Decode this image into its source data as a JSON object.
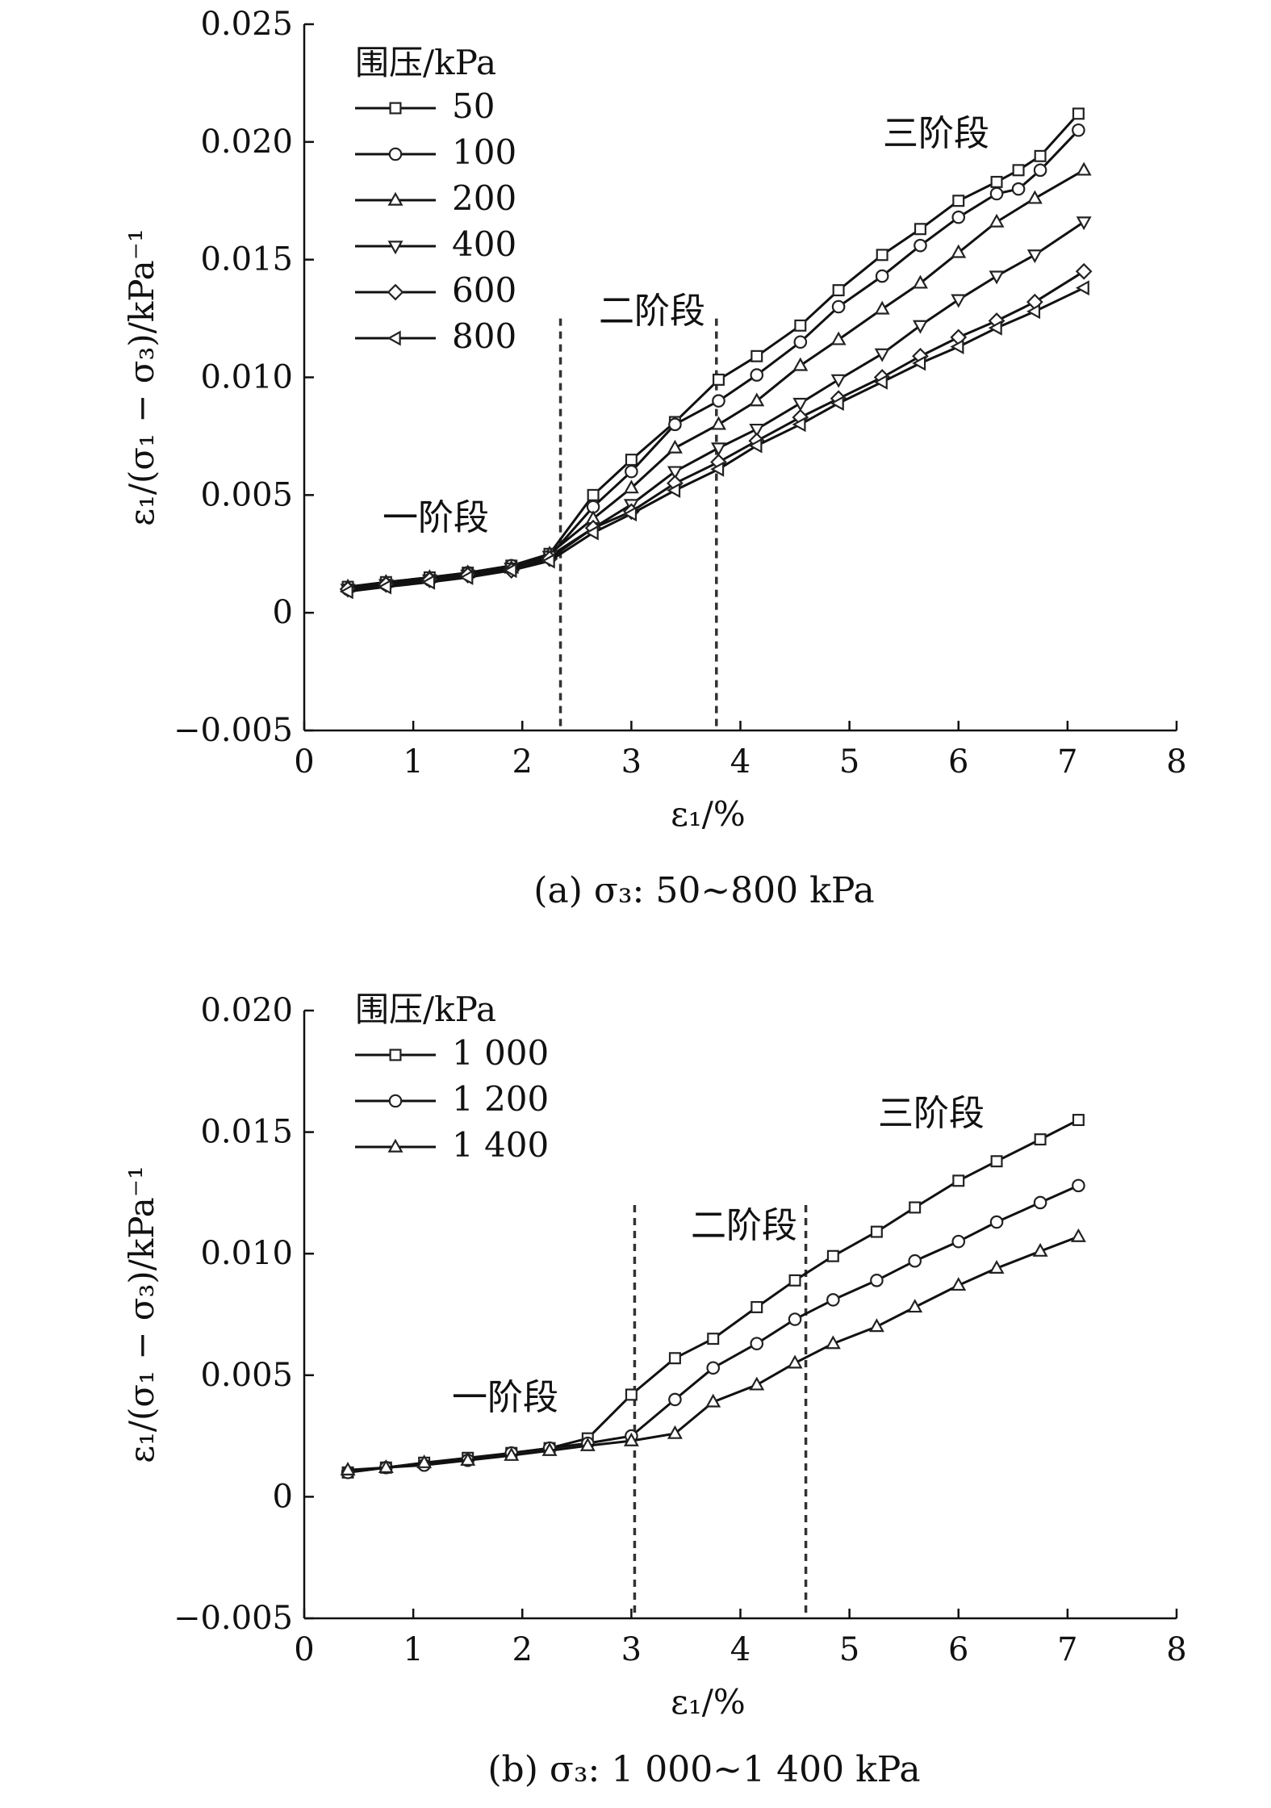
{
  "chart_data": [
    {
      "type": "line",
      "caption": "(a) σ₃: 50~800 kPa",
      "xlabel": "ε₁/%",
      "ylabel": "ε₁/(σ₁ − σ₃)/kPa⁻¹",
      "xlim": [
        0,
        8
      ],
      "ylim": [
        -0.005,
        0.025
      ],
      "x_ticks": [
        "0",
        "1",
        "2",
        "3",
        "4",
        "5",
        "6",
        "7",
        "8"
      ],
      "y_ticks": [
        "−0.005",
        "0",
        "0.005",
        "0.010",
        "0.015",
        "0.020",
        "0.025"
      ],
      "grid": false,
      "legend": {
        "title": "围压/kPa",
        "placement": "top-left"
      },
      "stage_labels": [
        "一阶段",
        "二阶段",
        "三阶段"
      ],
      "stage_boundaries_x": [
        2.35,
        3.78
      ],
      "series": [
        {
          "name": "50",
          "marker": "square",
          "x": [
            0.4,
            0.75,
            1.15,
            1.5,
            1.9,
            2.25,
            2.65,
            3.0,
            3.4,
            3.8,
            4.15,
            4.55,
            4.9,
            5.3,
            5.65,
            6.0,
            6.35,
            6.55,
            6.75,
            7.1
          ],
          "y": [
            0.0011,
            0.0013,
            0.0015,
            0.0017,
            0.002,
            0.0025,
            0.005,
            0.0065,
            0.0081,
            0.0099,
            0.0109,
            0.0122,
            0.0137,
            0.0152,
            0.0163,
            0.0175,
            0.0183,
            0.0188,
            0.0194,
            0.0212
          ]
        },
        {
          "name": "100",
          "marker": "circle",
          "x": [
            0.4,
            0.75,
            1.15,
            1.5,
            1.9,
            2.25,
            2.65,
            3.0,
            3.4,
            3.8,
            4.15,
            4.55,
            4.9,
            5.3,
            5.65,
            6.0,
            6.35,
            6.55,
            6.75,
            7.1
          ],
          "y": [
            0.001,
            0.0012,
            0.0014,
            0.0017,
            0.002,
            0.0024,
            0.0045,
            0.006,
            0.008,
            0.009,
            0.0101,
            0.0115,
            0.013,
            0.0143,
            0.0156,
            0.0168,
            0.0178,
            0.018,
            0.0188,
            0.0205
          ]
        },
        {
          "name": "200",
          "marker": "triangle-up",
          "x": [
            0.4,
            0.75,
            1.15,
            1.5,
            1.9,
            2.25,
            2.65,
            3.0,
            3.4,
            3.8,
            4.15,
            4.55,
            4.9,
            5.3,
            5.65,
            6.0,
            6.35,
            6.7,
            7.15
          ],
          "y": [
            0.0011,
            0.0013,
            0.0015,
            0.0017,
            0.0019,
            0.0025,
            0.004,
            0.0053,
            0.007,
            0.008,
            0.009,
            0.0105,
            0.0116,
            0.0129,
            0.014,
            0.0153,
            0.0166,
            0.0176,
            0.0188
          ]
        },
        {
          "name": "400",
          "marker": "triangle-down",
          "x": [
            0.4,
            0.75,
            1.15,
            1.5,
            1.9,
            2.25,
            2.65,
            3.0,
            3.4,
            3.8,
            4.15,
            4.55,
            4.9,
            5.3,
            5.65,
            6.0,
            6.35,
            6.7,
            7.15
          ],
          "y": [
            0.001,
            0.0012,
            0.0014,
            0.0016,
            0.0019,
            0.0024,
            0.0036,
            0.0046,
            0.006,
            0.007,
            0.0078,
            0.0089,
            0.0099,
            0.011,
            0.0122,
            0.0133,
            0.0143,
            0.0152,
            0.0166
          ]
        },
        {
          "name": "600",
          "marker": "diamond",
          "x": [
            0.4,
            0.75,
            1.15,
            1.5,
            1.9,
            2.25,
            2.65,
            3.0,
            3.4,
            3.8,
            4.15,
            4.55,
            4.9,
            5.3,
            5.65,
            6.0,
            6.35,
            6.7,
            7.15
          ],
          "y": [
            0.001,
            0.0012,
            0.0014,
            0.0016,
            0.0018,
            0.0023,
            0.0036,
            0.0043,
            0.0055,
            0.0064,
            0.0073,
            0.0083,
            0.0091,
            0.01,
            0.0109,
            0.0117,
            0.0124,
            0.0132,
            0.0145
          ]
        },
        {
          "name": "800",
          "marker": "triangle-left",
          "x": [
            0.4,
            0.75,
            1.15,
            1.5,
            1.9,
            2.25,
            2.65,
            3.0,
            3.4,
            3.8,
            4.15,
            4.55,
            4.9,
            5.3,
            5.65,
            6.0,
            6.35,
            6.7,
            7.15
          ],
          "y": [
            0.0009,
            0.0011,
            0.0013,
            0.0015,
            0.0018,
            0.0022,
            0.0034,
            0.0042,
            0.0052,
            0.0061,
            0.0071,
            0.008,
            0.0089,
            0.0098,
            0.0106,
            0.0113,
            0.0121,
            0.0128,
            0.0138
          ]
        }
      ]
    },
    {
      "type": "line",
      "caption": "(b) σ₃: 1 000~1 400 kPa",
      "xlabel": "ε₁/%",
      "ylabel": "ε₁/(σ₁ − σ₃)/kPa⁻¹",
      "xlim": [
        0,
        8
      ],
      "ylim": [
        -0.005,
        0.02
      ],
      "x_ticks": [
        "0",
        "1",
        "2",
        "3",
        "4",
        "5",
        "6",
        "7",
        "8"
      ],
      "y_ticks": [
        "−0.005",
        "0",
        "0.005",
        "0.010",
        "0.015",
        "0.020"
      ],
      "grid": false,
      "legend": {
        "title": "围压/kPa",
        "placement": "top-left"
      },
      "stage_labels": [
        "一阶段",
        "二阶段",
        "三阶段"
      ],
      "stage_boundaries_x": [
        3.03,
        4.6
      ],
      "series": [
        {
          "name": "1 000",
          "marker": "square",
          "x": [
            0.4,
            0.75,
            1.1,
            1.5,
            1.9,
            2.25,
            2.6,
            3.0,
            3.4,
            3.75,
            4.15,
            4.5,
            4.85,
            5.25,
            5.6,
            6.0,
            6.35,
            6.75,
            7.1
          ],
          "y": [
            0.001,
            0.0012,
            0.0014,
            0.0016,
            0.0018,
            0.002,
            0.0024,
            0.0042,
            0.0057,
            0.0065,
            0.0078,
            0.0089,
            0.0099,
            0.0109,
            0.0119,
            0.013,
            0.0138,
            0.0147,
            0.0155
          ]
        },
        {
          "name": "1 200",
          "marker": "circle",
          "x": [
            0.4,
            0.75,
            1.1,
            1.5,
            1.9,
            2.25,
            2.6,
            3.0,
            3.4,
            3.75,
            4.15,
            4.5,
            4.85,
            5.25,
            5.6,
            6.0,
            6.35,
            6.75,
            7.1
          ],
          "y": [
            0.001,
            0.0012,
            0.0013,
            0.0015,
            0.0018,
            0.002,
            0.0022,
            0.0025,
            0.004,
            0.0053,
            0.0063,
            0.0073,
            0.0081,
            0.0089,
            0.0097,
            0.0105,
            0.0113,
            0.0121,
            0.0128
          ]
        },
        {
          "name": "1 400",
          "marker": "triangle-up",
          "x": [
            0.4,
            0.75,
            1.1,
            1.5,
            1.9,
            2.25,
            2.6,
            3.0,
            3.4,
            3.75,
            4.15,
            4.5,
            4.85,
            5.25,
            5.6,
            6.0,
            6.35,
            6.75,
            7.1
          ],
          "y": [
            0.0011,
            0.0012,
            0.0014,
            0.0015,
            0.0017,
            0.0019,
            0.0021,
            0.0023,
            0.0026,
            0.0039,
            0.0046,
            0.0055,
            0.0063,
            0.007,
            0.0078,
            0.0087,
            0.0094,
            0.0101,
            0.0107
          ]
        }
      ]
    }
  ]
}
